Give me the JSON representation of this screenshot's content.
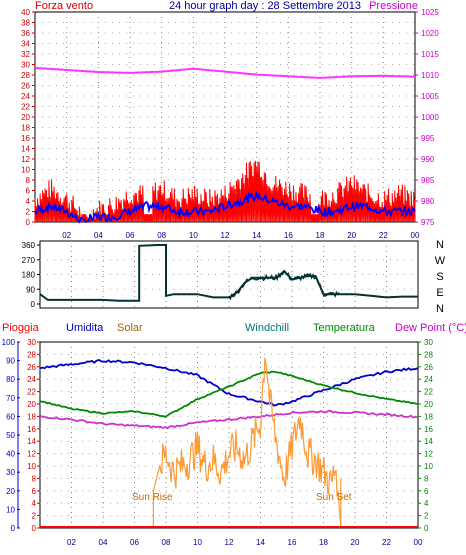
{
  "header": {
    "left_label": "Forza vento",
    "title": "24 hour graph day : 28 Settembre 2013",
    "right_label": "Pressione"
  },
  "middle": {
    "compass": [
      "N",
      "W",
      "S",
      "E",
      "N"
    ]
  },
  "bottom_header": {
    "labels": [
      "Pioggia",
      "Umidita",
      "Solar",
      "Windchill",
      "Temperatura",
      "Dew Point (°C)"
    ],
    "colors": [
      "#ff0000",
      "#0000aa",
      "#996600",
      "#007777",
      "#008800",
      "#cc00cc"
    ]
  },
  "annotations": {
    "sun_rise": "Sun Rise",
    "sun_set": "Sun Set"
  },
  "colors": {
    "wind_gust": "#ff0000",
    "wind_avg": "#0000ff",
    "pressure": "#ff33ff",
    "direction": "#003333",
    "humidity": "#0000cc",
    "temperature": "#008800",
    "dewpoint": "#cc33cc",
    "solar": "#ff9933",
    "rain": "#ff0000",
    "left_axis": "#cc0000",
    "right_axis": "#cc00cc",
    "bottom_left_axis": "#0000cc",
    "bottom_right_axis": "#008800"
  },
  "chart_data": [
    {
      "type": "line",
      "title": "24 hour graph day : 28 Settembre 2013",
      "x_ticks": [
        "02",
        "04",
        "06",
        "08",
        "10",
        "12",
        "14",
        "16",
        "18",
        "20",
        "22",
        "00"
      ],
      "y_left_label": "Forza vento",
      "y_left_ticks": [
        0,
        2,
        4,
        6,
        8,
        10,
        12,
        14,
        16,
        18,
        20,
        22,
        24,
        26,
        28,
        30,
        32,
        34,
        36,
        38,
        40
      ],
      "y_left_range": [
        0,
        40
      ],
      "y_right_label": "Pressione",
      "y_right_ticks": [
        975,
        980,
        985,
        990,
        995,
        1000,
        1005,
        1010,
        1015,
        1020,
        1025
      ],
      "y_right_range": [
        975,
        1025
      ],
      "grid": true,
      "series": [
        {
          "name": "Pressione",
          "axis": "right",
          "x": [
            0,
            2,
            4,
            6,
            8,
            10,
            12,
            14,
            16,
            18,
            20,
            22,
            24
          ],
          "values": [
            1011.7,
            1011.2,
            1010.7,
            1010.5,
            1010.8,
            1011.5,
            1010.8,
            1010.1,
            1009.7,
            1009.3,
            1009.7,
            1009.8,
            1009.6
          ]
        },
        {
          "name": "gust",
          "axis": "left",
          "x": [
            0,
            1,
            2,
            3,
            4,
            5,
            6,
            7,
            8,
            9,
            10,
            11,
            12,
            13,
            14,
            15,
            16,
            17,
            18,
            19,
            20,
            21,
            22,
            23,
            24
          ],
          "values": [
            4,
            6,
            4,
            1,
            2,
            3,
            5,
            5,
            6,
            4,
            5,
            4,
            5,
            8,
            11,
            7,
            6,
            5,
            4,
            5,
            7,
            5,
            4,
            5,
            4
          ]
        },
        {
          "name": "avg",
          "axis": "left",
          "x": [
            0,
            1,
            2,
            3,
            4,
            5,
            6,
            7,
            8,
            9,
            10,
            11,
            12,
            13,
            14,
            15,
            16,
            17,
            18,
            19,
            20,
            21,
            22,
            23,
            24
          ],
          "values": [
            2,
            3,
            2,
            0,
            1,
            1,
            2,
            3,
            3,
            2,
            2,
            2,
            3,
            4,
            5,
            4,
            3,
            3,
            2,
            2,
            3,
            3,
            2,
            2,
            2
          ]
        }
      ]
    },
    {
      "type": "line",
      "y_ticks": [
        0,
        90,
        180,
        270,
        360
      ],
      "y_range": [
        0,
        360
      ],
      "y_right_labels": [
        "N",
        "W",
        "S",
        "E",
        "N"
      ],
      "series": [
        {
          "name": "direction",
          "x": [
            0,
            0.5,
            2,
            3,
            4,
            5,
            6,
            6.3,
            6.3,
            7.5,
            8,
            8,
            8.5,
            10,
            11,
            12,
            12.5,
            13,
            13.5,
            14,
            15,
            15.5,
            16,
            17,
            17.5,
            18,
            19,
            20,
            21,
            22,
            23,
            24
          ],
          "values": [
            60,
            25,
            25,
            25,
            25,
            20,
            20,
            20,
            355,
            360,
            360,
            50,
            60,
            60,
            40,
            40,
            70,
            130,
            160,
            160,
            160,
            200,
            150,
            170,
            170,
            60,
            60,
            60,
            50,
            40,
            45,
            45
          ]
        }
      ]
    },
    {
      "type": "line",
      "x_ticks": [
        "02",
        "04",
        "06",
        "08",
        "10",
        "12",
        "14",
        "16",
        "18",
        "20",
        "22",
        "00"
      ],
      "y_outer_left_label": "Pioggia",
      "y_outer_left_ticks": [
        0,
        10,
        20,
        30,
        40,
        50,
        60,
        70,
        80,
        90,
        100
      ],
      "y_inner_left_ticks": [
        0,
        2,
        4,
        6,
        8,
        10,
        12,
        14,
        16,
        18,
        20,
        22,
        24,
        26,
        28,
        30
      ],
      "y_right_ticks": [
        0,
        2,
        4,
        6,
        8,
        10,
        12,
        14,
        16,
        18,
        20,
        22,
        24,
        26,
        28,
        30
      ],
      "y_range": [
        0,
        30
      ],
      "humidity_range": [
        0,
        100
      ],
      "grid": true,
      "series": [
        {
          "name": "Umidita",
          "axis": "humidity",
          "x": [
            0,
            2,
            4,
            6,
            8,
            10,
            12,
            14,
            15,
            16,
            18,
            20,
            22,
            24
          ],
          "values": [
            86,
            88,
            90,
            89,
            86,
            82,
            72,
            68,
            66,
            68,
            74,
            80,
            84,
            86
          ]
        },
        {
          "name": "Temperatura",
          "axis": "temp",
          "x": [
            0,
            2,
            4,
            6,
            8,
            10,
            12,
            14,
            15,
            16,
            18,
            20,
            22,
            24
          ],
          "values": [
            20.5,
            19.2,
            18.5,
            18.8,
            18.0,
            20.8,
            22.8,
            25.0,
            25.2,
            24.5,
            23.0,
            21.8,
            20.8,
            20.0
          ]
        },
        {
          "name": "Dew Point (°C)",
          "axis": "temp",
          "x": [
            0,
            2,
            4,
            6,
            8,
            10,
            12,
            14,
            16,
            18,
            20,
            22,
            24
          ],
          "values": [
            18.0,
            17.5,
            16.8,
            16.5,
            16.2,
            17.0,
            17.5,
            18.0,
            18.6,
            18.8,
            18.6,
            18.3,
            17.9
          ]
        },
        {
          "name": "Solar",
          "axis": "temp",
          "x": [
            7.2,
            7.6,
            8,
            8.5,
            9,
            9.5,
            10,
            10.5,
            11,
            11.5,
            12,
            12.5,
            13,
            13.5,
            14,
            14.3,
            14.6,
            15,
            15.5,
            16,
            16.5,
            17,
            17.5,
            18,
            18.5,
            18.8,
            19.1
          ],
          "values": [
            6,
            10,
            12,
            9,
            10,
            11,
            13,
            10,
            11,
            9,
            12,
            13,
            11,
            14,
            17,
            29,
            20,
            14,
            8,
            13,
            18,
            12,
            11,
            9,
            7,
            10,
            0
          ]
        },
        {
          "name": "Pioggia",
          "axis": "temp",
          "x": [
            0,
            24
          ],
          "values": [
            0,
            0
          ]
        }
      ]
    }
  ]
}
